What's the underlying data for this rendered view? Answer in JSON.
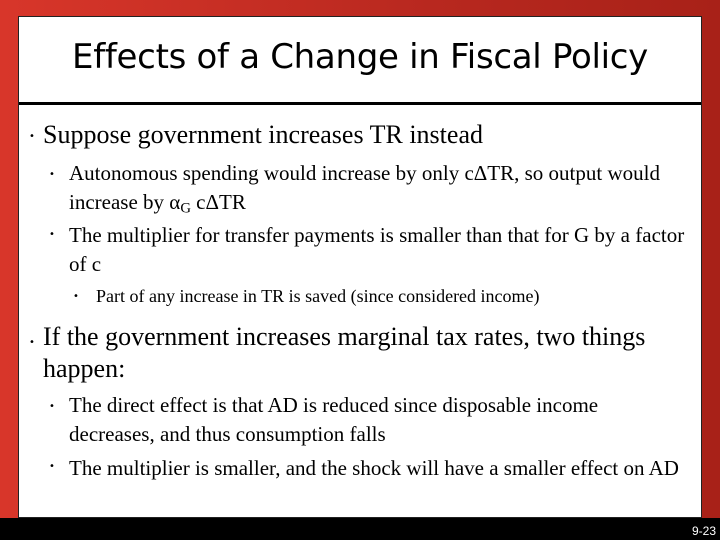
{
  "slide": {
    "title": "Effects of a Change in Fiscal Policy",
    "bullets": [
      {
        "text": "Suppose government increases TR instead",
        "sub": [
          {
            "pre": "Autonomous spending would increase by only cΔTR, so output would increase by ",
            "greek": "α",
            "subscript": "G",
            "post": " cΔTR"
          },
          {
            "text": "The multiplier for transfer payments is smaller than that for G by a factor of c"
          }
        ],
        "subsub": "Part of any increase in TR is saved (since considered income)"
      },
      {
        "text": "If the government increases marginal tax rates, two things happen:",
        "sub": [
          {
            "text": "The direct effect is that AD is reduced since disposable income decreases, and thus consumption falls"
          },
          {
            "text": "The multiplier is smaller, and the shock will have a smaller effect on AD"
          }
        ]
      }
    ],
    "page_number": "9-23"
  }
}
